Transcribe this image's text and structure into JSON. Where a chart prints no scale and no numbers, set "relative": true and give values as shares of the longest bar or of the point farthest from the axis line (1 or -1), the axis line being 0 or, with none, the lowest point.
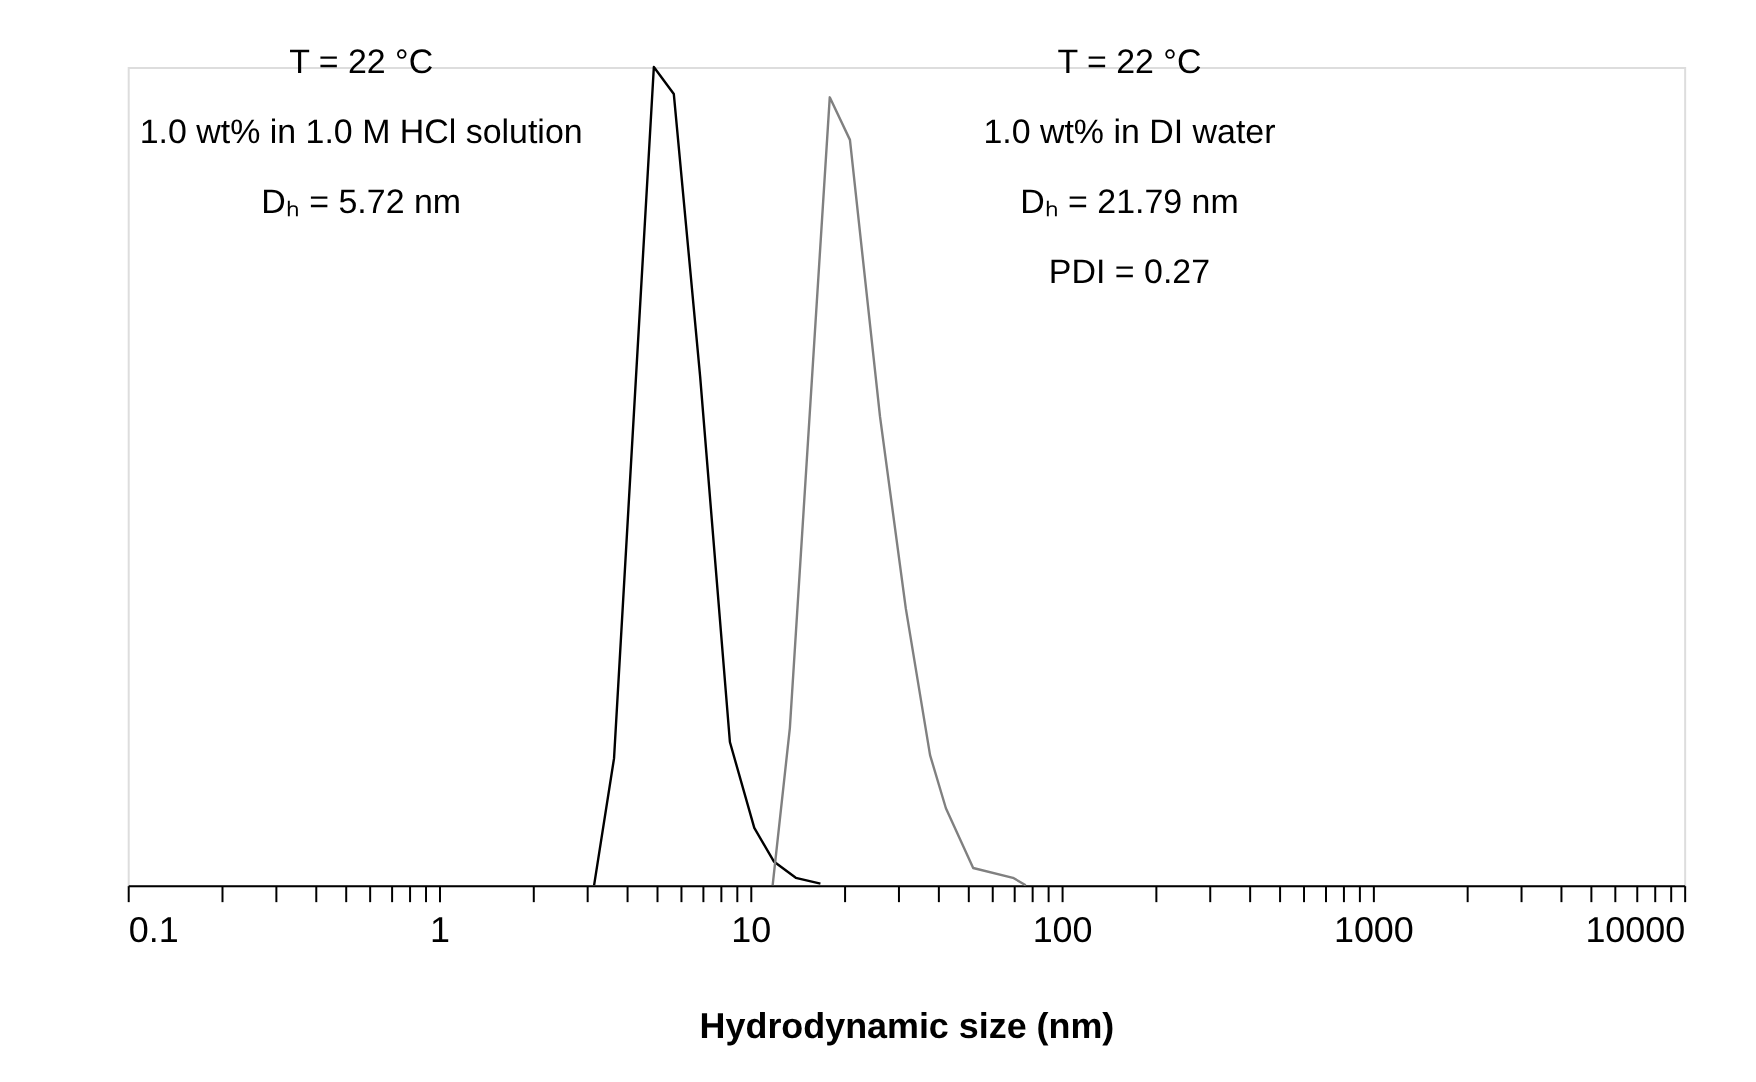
{
  "chart_data": {
    "type": "line",
    "xlabel": "Hydrodynamic size (nm)",
    "relative": true,
    "log": "x",
    "xlim": [
      0.1,
      10000
    ],
    "xticks": [
      0.1,
      {
        "value": 0.2,
        "label": null
      },
      {
        "value": 0.3,
        "label": null
      },
      {
        "value": 0.4,
        "label": null
      },
      {
        "value": 0.5,
        "label": null
      },
      {
        "value": 0.6,
        "label": null
      },
      {
        "value": 0.7,
        "label": null
      },
      {
        "value": 0.8,
        "label": null
      },
      {
        "value": 0.9,
        "label": null
      },
      1,
      {
        "value": 2,
        "label": null
      },
      {
        "value": 3,
        "label": null
      },
      {
        "value": 4,
        "label": null
      },
      {
        "value": 5,
        "label": null
      },
      {
        "value": 6,
        "label": null
      },
      {
        "value": 7,
        "label": null
      },
      {
        "value": 8,
        "label": null
      },
      {
        "value": 9,
        "label": null
      },
      10,
      {
        "value": 20,
        "label": null
      },
      {
        "value": 30,
        "label": null
      },
      {
        "value": 40,
        "label": null
      },
      {
        "value": 50,
        "label": null
      },
      {
        "value": 60,
        "label": null
      },
      {
        "value": 70,
        "label": null
      },
      {
        "value": 80,
        "label": null
      },
      {
        "value": 90,
        "label": null
      },
      100,
      {
        "value": 200,
        "label": null
      },
      {
        "value": 300,
        "label": null
      },
      {
        "value": 400,
        "label": null
      },
      {
        "value": 500,
        "label": null
      },
      {
        "value": 600,
        "label": null
      },
      {
        "value": 700,
        "label": null
      },
      {
        "value": 800,
        "label": null
      },
      {
        "value": 900,
        "label": null
      },
      1000,
      {
        "value": 2000,
        "label": null
      },
      {
        "value": 3000,
        "label": null
      },
      {
        "value": 4000,
        "label": null
      },
      {
        "value": 5000,
        "label": null
      },
      {
        "value": 6000,
        "label": null
      },
      {
        "value": 7000,
        "label": null
      },
      {
        "value": 8000,
        "label": null
      },
      {
        "value": 9000,
        "label": null
      },
      10000
    ],
    "series": [
      {
        "color": "#000000",
        "x": [
          3.15,
          3.65,
          4.9,
          5.68,
          6.9,
          8.6,
          10.3,
          11.9,
          14.0,
          16.8
        ],
        "values": [
          0,
          0.155,
          1,
          0.967,
          0.622,
          0.175,
          0.07,
          0.029,
          0.009,
          0.002
        ]
      },
      {
        "color": "#808080",
        "x": [
          11.8,
          13.4,
          18.0,
          20.9,
          26.1,
          31.6,
          37.8,
          42.5,
          52.0,
          69.8,
          76.7
        ],
        "values": [
          0,
          0.192,
          0.963,
          0.911,
          0.573,
          0.338,
          0.159,
          0.094,
          0.021,
          0.009,
          0
        ]
      }
    ],
    "annotations": [
      "T = 22 °C",
      "1.0 wt% in 1.0 M HCl solution",
      "Dₕ = 5.72 nm",
      "T = 22 °C",
      "1.0 wt% in DI water",
      "Dₕ = 21.79 nm",
      "PDI = 0.27"
    ]
  }
}
